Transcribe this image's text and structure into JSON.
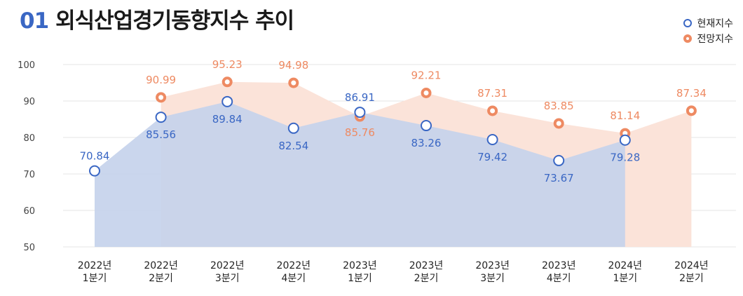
{
  "header": {
    "num": "01",
    "title": "외식산업경기동향지수 추이"
  },
  "legend": [
    {
      "label": "현재지수",
      "series": "current"
    },
    {
      "label": "전망지수",
      "series": "forecast"
    }
  ],
  "colors": {
    "current": "#3a67c4",
    "forecast": "#ee8a62",
    "current_fill": "#c5d2ec",
    "forecast_fill": "#fbe3d9"
  },
  "chart_data": {
    "type": "area",
    "title": "외식산업경기동향지수 추이",
    "categories": [
      [
        "2022년",
        "1분기"
      ],
      [
        "2022년",
        "2분기"
      ],
      [
        "2022년",
        "3분기"
      ],
      [
        "2022년",
        "4분기"
      ],
      [
        "2023년",
        "1분기"
      ],
      [
        "2023년",
        "2분기"
      ],
      [
        "2023년",
        "3분기"
      ],
      [
        "2023년",
        "4분기"
      ],
      [
        "2024년",
        "1분기"
      ],
      [
        "2024년",
        "2분기"
      ]
    ],
    "y_ticks": [
      50,
      60,
      70,
      80,
      90,
      100
    ],
    "ylim": [
      50,
      100
    ],
    "series": [
      {
        "name": "현재지수",
        "key": "current",
        "values": [
          70.84,
          85.56,
          89.84,
          82.54,
          86.91,
          83.26,
          79.42,
          73.67,
          79.28,
          null
        ]
      },
      {
        "name": "전망지수",
        "key": "forecast",
        "values": [
          null,
          90.99,
          95.23,
          94.98,
          85.76,
          92.21,
          87.31,
          83.85,
          81.14,
          87.34
        ]
      }
    ],
    "grid": true,
    "legend_position": "top-right"
  }
}
